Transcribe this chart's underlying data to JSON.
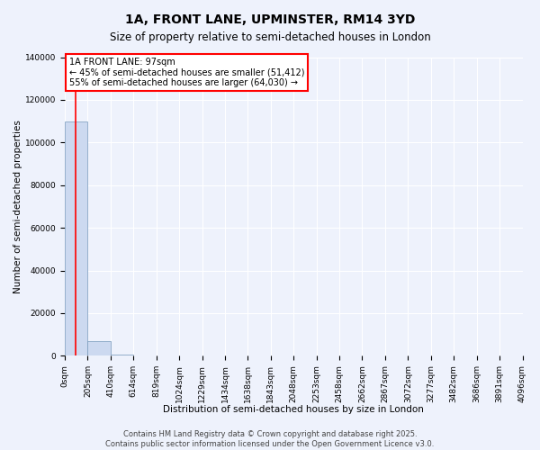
{
  "title": "1A, FRONT LANE, UPMINSTER, RM14 3YD",
  "subtitle": "Size of property relative to semi-detached houses in London",
  "xlabel": "Distribution of semi-detached houses by size in London",
  "ylabel": "Number of semi-detached properties",
  "property_size": 97,
  "annotation_text_line1": "1A FRONT LANE: 97sqm",
  "annotation_text_line2": "← 45% of semi-detached houses are smaller (51,412)",
  "annotation_text_line3": "55% of semi-detached houses are larger (64,030) →",
  "bar_color": "#ccd9f0",
  "bar_edge_color": "#7799bb",
  "vline_color": "red",
  "background_color": "#eef2fc",
  "grid_color": "white",
  "ylim": [
    0,
    140000
  ],
  "xlim": [
    0,
    4096
  ],
  "bin_edges": [
    0,
    205,
    410,
    614,
    819,
    1024,
    1229,
    1434,
    1638,
    1843,
    2048,
    2253,
    2458,
    2662,
    2867,
    3072,
    3277,
    3482,
    3686,
    3891,
    4096
  ],
  "bin_counts": [
    110000,
    7000,
    600,
    200,
    100,
    70,
    50,
    35,
    25,
    18,
    12,
    8,
    6,
    5,
    4,
    3,
    2,
    2,
    1,
    1
  ],
  "yticks": [
    0,
    20000,
    40000,
    60000,
    80000,
    100000,
    120000,
    140000
  ],
  "footer_line1": "Contains HM Land Registry data © Crown copyright and database right 2025.",
  "footer_line2": "Contains public sector information licensed under the Open Government Licence v3.0.",
  "title_fontsize": 10,
  "subtitle_fontsize": 8.5,
  "tick_fontsize": 6.5,
  "label_fontsize": 7.5,
  "annotation_fontsize": 7,
  "footer_fontsize": 6
}
